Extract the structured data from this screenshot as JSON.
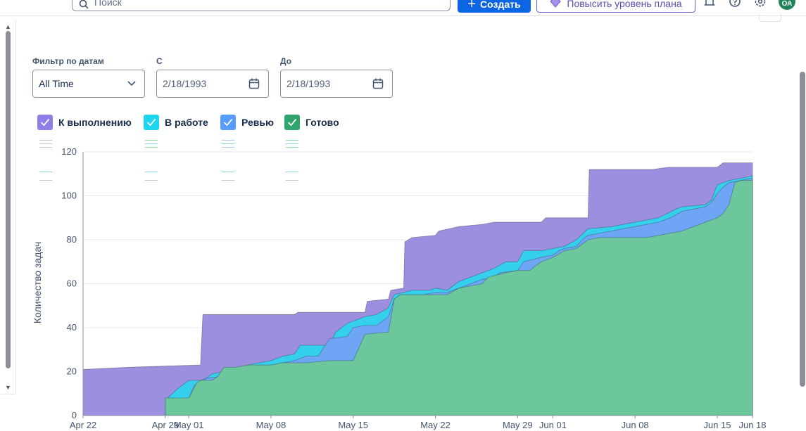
{
  "header": {
    "search_placeholder": "Поиск",
    "create_label": "Создать",
    "upgrade_label": "Повысить уровень плана",
    "avatar_initials": "ОА",
    "icons": [
      "search-icon",
      "plus-icon",
      "gem-icon",
      "bell-icon",
      "help-icon",
      "settings-icon"
    ]
  },
  "filters": {
    "date_filter_label": "Фильтр по датам",
    "date_filter_value": "All Time",
    "from_label": "С",
    "from_value": "2/18/1993",
    "to_label": "До",
    "to_value": "2/18/1993"
  },
  "legend": [
    {
      "label": "К выполнению",
      "color": "#8f7ee7",
      "checked": true
    },
    {
      "label": "В работе",
      "color": "#1ed5f0",
      "checked": true
    },
    {
      "label": "Ревью",
      "color": "#579dff",
      "checked": true
    },
    {
      "label": "Готово",
      "color": "#2fa56d",
      "checked": true
    }
  ],
  "chart_data": {
    "type": "area",
    "stacked": true,
    "ylabel": "Количество задач",
    "xlabel": "",
    "ylim": [
      0,
      120
    ],
    "yticks": [
      0,
      20,
      40,
      60,
      80,
      100,
      120
    ],
    "grid": true,
    "legend_position": "top-left",
    "x_start": "Apr 22",
    "x_end": "Jun 18",
    "xticks": [
      {
        "label": "Apr 22",
        "day": 0
      },
      {
        "label": "Apr 29",
        "day": 7
      },
      {
        "label": "May 01",
        "day": 9
      },
      {
        "label": "May 08",
        "day": 16
      },
      {
        "label": "May 15",
        "day": 23
      },
      {
        "label": "May 22",
        "day": 30
      },
      {
        "label": "May 29",
        "day": 37
      },
      {
        "label": "Jun 01",
        "day": 40
      },
      {
        "label": "Jun 08",
        "day": 47
      },
      {
        "label": "Jun 15",
        "day": 54
      },
      {
        "label": "Jun 18",
        "day": 57
      }
    ],
    "series": [
      {
        "name": "К выполнению",
        "color": "#9d8fe0",
        "points": [
          [
            0,
            21
          ],
          [
            4,
            22
          ],
          [
            10,
            23
          ],
          [
            10.2,
            46
          ],
          [
            18,
            46
          ],
          [
            18.3,
            47
          ],
          [
            24,
            47
          ],
          [
            24.2,
            52
          ],
          [
            26,
            53
          ],
          [
            26.2,
            57
          ],
          [
            27.3,
            58
          ],
          [
            27.4,
            79
          ],
          [
            28,
            81
          ],
          [
            30,
            82
          ],
          [
            30.3,
            84
          ],
          [
            32,
            86
          ],
          [
            34,
            87
          ],
          [
            35,
            88
          ],
          [
            39,
            88
          ],
          [
            39.4,
            90
          ],
          [
            43,
            90
          ],
          [
            43.1,
            112
          ],
          [
            48.5,
            112
          ],
          [
            49.8,
            113
          ],
          [
            51,
            113
          ],
          [
            54,
            113
          ],
          [
            54.5,
            115
          ],
          [
            57,
            115
          ]
        ]
      },
      {
        "name": "В работе",
        "color": "#35d0ed",
        "points": [
          [
            0,
            0
          ],
          [
            7,
            0
          ],
          [
            7,
            7
          ],
          [
            8,
            12
          ],
          [
            9,
            16
          ],
          [
            10,
            16
          ],
          [
            10.5,
            17
          ],
          [
            11,
            19
          ],
          [
            12,
            20
          ],
          [
            13,
            21
          ],
          [
            14,
            23
          ],
          [
            15,
            24
          ],
          [
            16,
            25
          ],
          [
            17,
            27
          ],
          [
            18,
            28
          ],
          [
            18.5,
            32
          ],
          [
            21,
            32
          ],
          [
            21.5,
            38
          ],
          [
            22.5,
            42
          ],
          [
            24,
            45
          ],
          [
            25,
            46
          ],
          [
            26,
            49
          ],
          [
            26.5,
            55
          ],
          [
            28,
            57
          ],
          [
            29.5,
            57
          ],
          [
            30,
            58
          ],
          [
            31,
            57
          ],
          [
            32,
            61
          ],
          [
            33,
            63
          ],
          [
            34,
            65
          ],
          [
            35,
            67
          ],
          [
            36,
            70
          ],
          [
            37,
            70
          ],
          [
            37.5,
            75
          ],
          [
            39,
            75
          ],
          [
            40,
            76
          ],
          [
            41,
            77
          ],
          [
            42,
            80
          ],
          [
            43,
            85
          ],
          [
            45,
            86
          ],
          [
            46,
            87
          ],
          [
            47,
            88
          ],
          [
            48,
            89
          ],
          [
            49,
            90
          ],
          [
            50.5,
            94
          ],
          [
            51,
            95
          ],
          [
            53,
            96
          ],
          [
            53.5,
            98
          ],
          [
            54,
            105
          ],
          [
            55,
            107
          ],
          [
            56,
            108
          ],
          [
            57,
            109
          ]
        ]
      },
      {
        "name": "Ревью",
        "color": "#6fa5f5",
        "points": [
          [
            0,
            0
          ],
          [
            7,
            0
          ],
          [
            7,
            6
          ],
          [
            9,
            8
          ],
          [
            9.5,
            14
          ],
          [
            10,
            15
          ],
          [
            10.5,
            17
          ],
          [
            12,
            18
          ],
          [
            13,
            20
          ],
          [
            14,
            22
          ],
          [
            15,
            23
          ],
          [
            16,
            23
          ],
          [
            17,
            24
          ],
          [
            18,
            25
          ],
          [
            19,
            27
          ],
          [
            20,
            27
          ],
          [
            21,
            35
          ],
          [
            22.5,
            36
          ],
          [
            23,
            40
          ],
          [
            24,
            41
          ],
          [
            25,
            41
          ],
          [
            26,
            45
          ],
          [
            26.5,
            53
          ],
          [
            27,
            55
          ],
          [
            29,
            55
          ],
          [
            30,
            56
          ],
          [
            31,
            56
          ],
          [
            32,
            58
          ],
          [
            33,
            60
          ],
          [
            34,
            62
          ],
          [
            35,
            63
          ],
          [
            35.5,
            65
          ],
          [
            37,
            66
          ],
          [
            37.5,
            70
          ],
          [
            39,
            72
          ],
          [
            40,
            73
          ],
          [
            40.5,
            75
          ],
          [
            41,
            76
          ],
          [
            42,
            77
          ],
          [
            42.5,
            80
          ],
          [
            43,
            82
          ],
          [
            44,
            83
          ],
          [
            46,
            85
          ],
          [
            47,
            86
          ],
          [
            48,
            87
          ],
          [
            49,
            88
          ],
          [
            50,
            90
          ],
          [
            51,
            93
          ],
          [
            52,
            94
          ],
          [
            53,
            95
          ],
          [
            53.5,
            97
          ],
          [
            54,
            101
          ],
          [
            54.5,
            104
          ],
          [
            55,
            106
          ],
          [
            56,
            107
          ],
          [
            57,
            108
          ]
        ]
      },
      {
        "name": "Готово",
        "color": "#6cc79c",
        "points": [
          [
            0,
            0
          ],
          [
            7,
            0
          ],
          [
            7,
            8
          ],
          [
            9,
            8
          ],
          [
            9.7,
            15
          ],
          [
            10,
            16
          ],
          [
            11,
            16
          ],
          [
            11.5,
            18
          ],
          [
            12,
            22
          ],
          [
            13,
            22
          ],
          [
            14,
            23
          ],
          [
            15,
            23
          ],
          [
            16,
            23
          ],
          [
            17,
            24
          ],
          [
            19,
            24
          ],
          [
            21,
            25
          ],
          [
            23,
            25
          ],
          [
            24,
            37
          ],
          [
            26,
            38
          ],
          [
            26.5,
            53
          ],
          [
            27,
            55
          ],
          [
            29,
            55
          ],
          [
            31,
            55
          ],
          [
            32,
            58
          ],
          [
            33,
            59
          ],
          [
            34,
            60
          ],
          [
            34.5,
            63
          ],
          [
            36,
            65
          ],
          [
            37,
            66
          ],
          [
            38,
            66
          ],
          [
            39,
            70
          ],
          [
            40,
            72
          ],
          [
            41,
            75
          ],
          [
            42,
            76
          ],
          [
            43,
            80
          ],
          [
            44,
            81
          ],
          [
            45,
            81
          ],
          [
            48,
            81
          ],
          [
            49,
            82
          ],
          [
            51,
            84
          ],
          [
            52,
            86
          ],
          [
            53,
            88
          ],
          [
            54,
            90
          ],
          [
            54.5,
            92
          ],
          [
            55,
            96
          ],
          [
            55.5,
            106
          ],
          [
            56,
            107
          ],
          [
            57,
            107
          ]
        ]
      }
    ]
  }
}
